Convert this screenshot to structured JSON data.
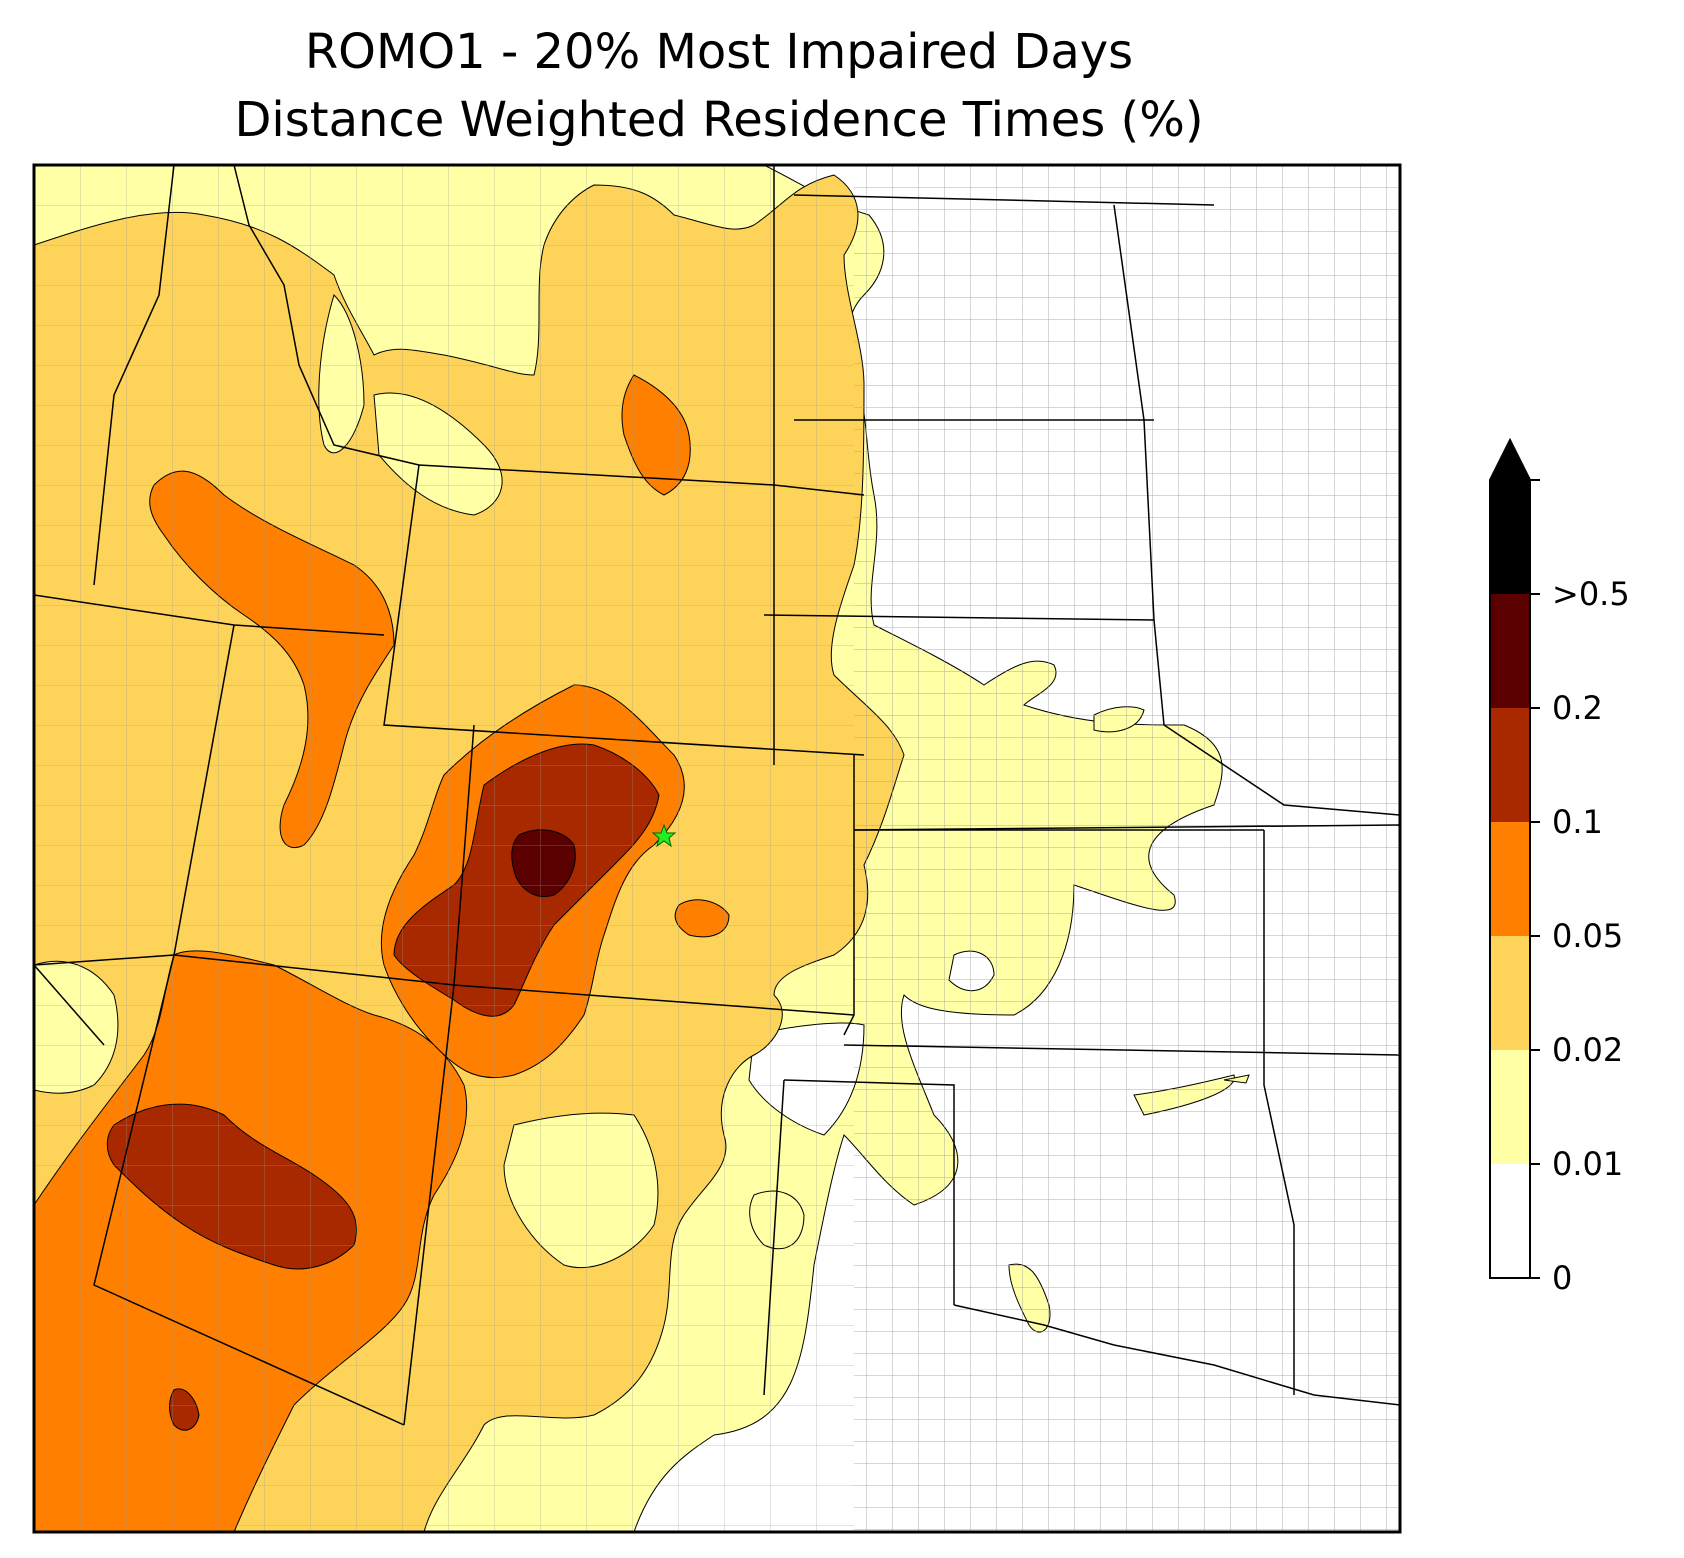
{
  "title": {
    "line1": "ROMO1 - 20% Most Impaired Days",
    "line2": "Distance Weighted Residence Times (%)"
  },
  "map": {
    "station": "ROMO1",
    "station_marker_color": "#22ee22",
    "region": "Western / Central United States",
    "color_levels": [
      {
        "range": "0-0.01",
        "color": "#ffffff"
      },
      {
        "range": "0.01-0.02",
        "color": "#ffffa6"
      },
      {
        "range": "0.02-0.05",
        "color": "#fdd35a"
      },
      {
        "range": "0.05-0.1",
        "color": "#ff8000"
      },
      {
        "range": "0.1-0.2",
        "color": "#a82800"
      },
      {
        "range": "0.2-0.5",
        "color": "#5a0000"
      },
      {
        "range": ">0.5",
        "color": "#000000"
      }
    ]
  },
  "colorbar": {
    "tick_labels": [
      "0",
      "0.01",
      "0.02",
      "0.05",
      "0.1",
      "0.2",
      ">0.5"
    ],
    "colors": [
      "#ffffff",
      "#ffffa6",
      "#fdd35a",
      "#ff8000",
      "#a82800",
      "#5a0000",
      "#000000"
    ],
    "extend": "max"
  }
}
